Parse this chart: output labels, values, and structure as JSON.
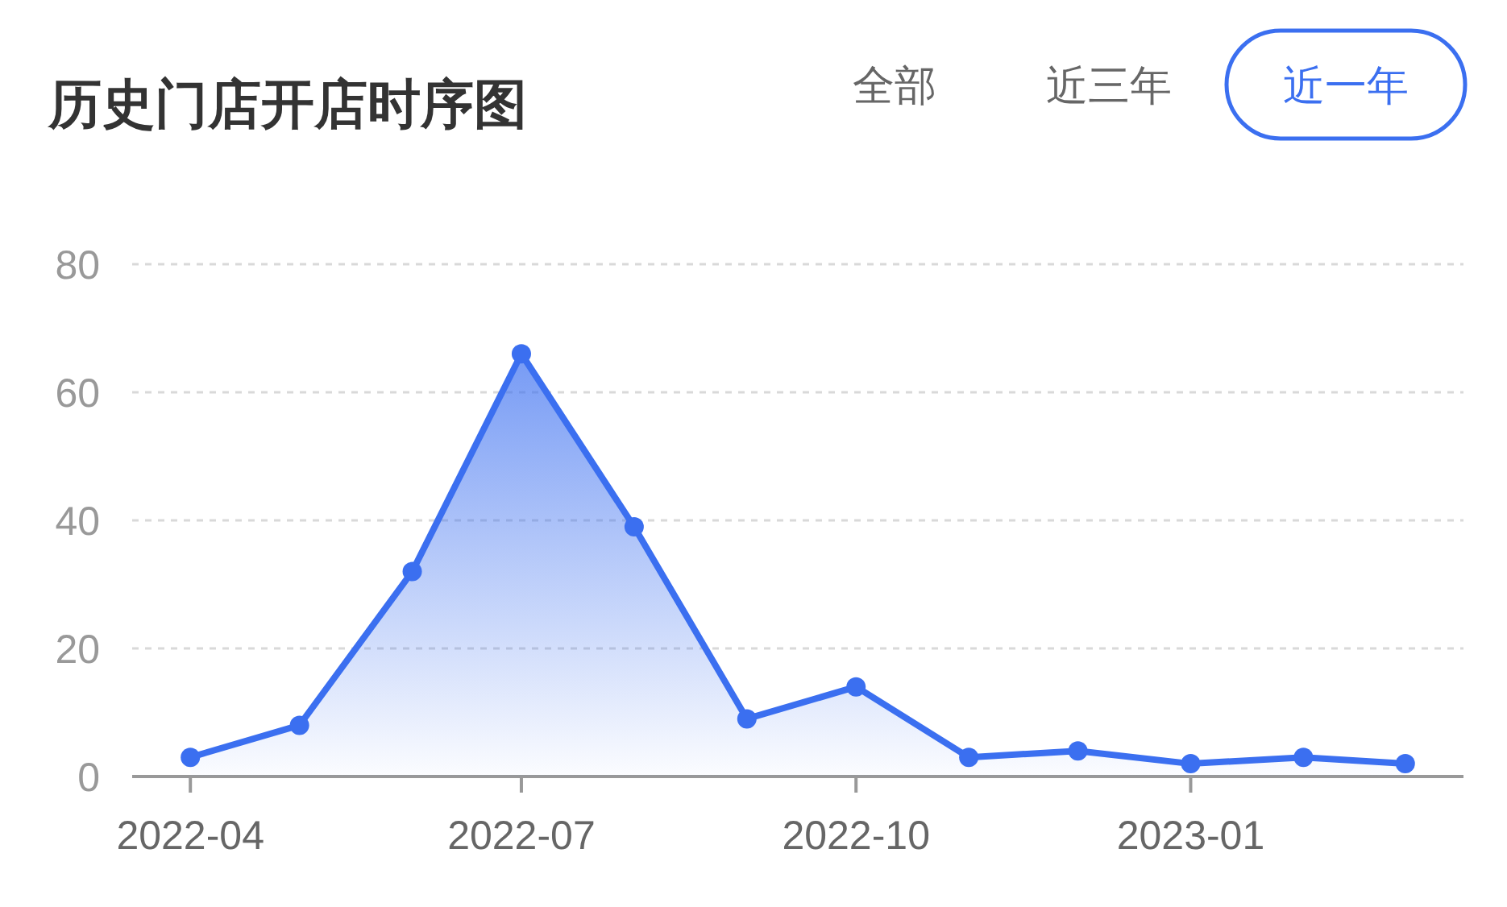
{
  "chart_data": {
    "type": "area",
    "title": "历史门店开店时序图",
    "annotations": [
      "全部",
      "近三年",
      "近一年"
    ],
    "x": [
      "2022-04",
      "2022-05",
      "2022-06",
      "2022-07",
      "2022-08",
      "2022-09",
      "2022-10",
      "2022-11",
      "2022-12",
      "2023-01",
      "2023-02",
      "2023-03"
    ],
    "series": [
      {
        "color": "#3b6ff0",
        "values": [
          3,
          8,
          32,
          66,
          39,
          9,
          14,
          3,
          4,
          2,
          3,
          2
        ]
      }
    ],
    "xlim": [
      "2022-03-16",
      "2023-03-17"
    ],
    "xticks": [
      "2022-04",
      "2022-07",
      "2022-10",
      "2023-01"
    ],
    "ylim": [
      0,
      80
    ],
    "yticks": [
      0,
      20,
      40,
      60,
      80
    ],
    "grid": "y",
    "marker": "circle",
    "line_style": "solid"
  }
}
